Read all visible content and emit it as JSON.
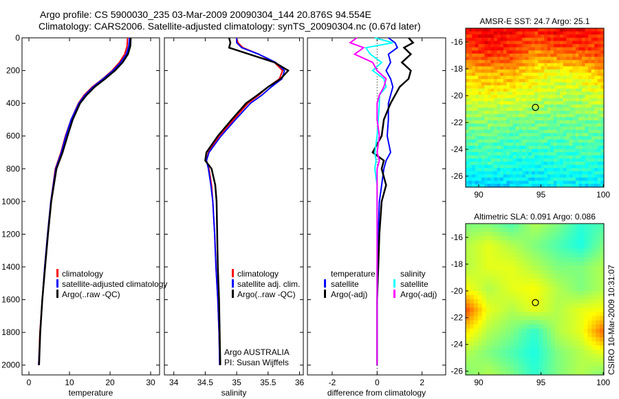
{
  "title_line1": "Argo profile: CS 5900030_235 03-Mar-2009 20090304_144 20.876S 94.554E",
  "title_line2": "Climatology: CARS2006. Satellite-adjusted climatology: synTS_20090304.nc (0.67d later)",
  "footer": "CSIRO 10-Mar-2009 10:31:07",
  "colors": {
    "climatology": "#ff0000",
    "satellite": "#0000ff",
    "argo": "#000000",
    "sal_sat": "#00ffff",
    "sal_argo": "#ff00ff"
  },
  "chart_data": [
    {
      "type": "line",
      "id": "temp",
      "xlabel": "temperature",
      "xlim": [
        -1.7,
        32.2
      ],
      "ylim": [
        0,
        2060
      ],
      "xticks": [
        0,
        10,
        20,
        30
      ],
      "yticks": [
        0,
        200,
        400,
        600,
        800,
        1000,
        1200,
        1400,
        1600,
        1800,
        2000
      ],
      "legend": [
        "climatology",
        "satellite-adjusted climatology",
        "Argo(..raw -QC)"
      ],
      "depth": [
        0,
        50,
        100,
        150,
        200,
        250,
        300,
        350,
        400,
        500,
        600,
        700,
        800,
        1000,
        1200,
        1400,
        1600,
        1800,
        2000
      ],
      "series": [
        {
          "name": "climatology",
          "color": "#ff0000",
          "values": [
            24.3,
            24.2,
            23.6,
            22.3,
            20.5,
            18.2,
            15.6,
            13.6,
            12.2,
            10.4,
            9.0,
            7.9,
            6.5,
            5.4,
            4.6,
            3.9,
            3.3,
            2.7,
            2.4
          ]
        },
        {
          "name": "satellite-adjusted climatology",
          "color": "#0000ff",
          "values": [
            24.8,
            24.6,
            24.0,
            22.6,
            20.7,
            18.3,
            15.8,
            13.8,
            12.3,
            10.4,
            9.1,
            8.0,
            6.6,
            5.4,
            4.6,
            3.9,
            3.3,
            2.8,
            2.4
          ]
        },
        {
          "name": "Argo(..raw -QC)",
          "color": "#000000",
          "values": [
            25.1,
            25.0,
            24.4,
            23.1,
            21.2,
            18.8,
            16.2,
            14.2,
            12.6,
            10.8,
            9.5,
            8.3,
            6.8,
            5.5,
            4.7,
            4.0,
            3.3,
            2.8,
            2.5
          ]
        }
      ]
    },
    {
      "type": "line",
      "id": "sal",
      "xlabel": "salinity",
      "xlim": [
        33.85,
        36.06
      ],
      "ylim": [
        0,
        2060
      ],
      "xticks": [
        34,
        34.5,
        35,
        35.5,
        36
      ],
      "legend": [
        "climatology",
        "satellite adj. clim.",
        "Argo(..raw -QC)"
      ],
      "annotation": [
        "Argo AUSTRALIA",
        "PI: Susan Wijffels"
      ],
      "depth": [
        0,
        30,
        60,
        100,
        150,
        200,
        250,
        300,
        350,
        400,
        500,
        600,
        700,
        750,
        800,
        900,
        1000,
        1200,
        1400,
        1600,
        1800,
        2000
      ],
      "series": [
        {
          "name": "climatology",
          "color": "#ff0000",
          "values": [
            35.0,
            35.02,
            35.1,
            35.35,
            35.6,
            35.73,
            35.68,
            35.5,
            35.35,
            35.18,
            34.95,
            34.72,
            34.55,
            34.52,
            34.56,
            34.6,
            34.62,
            34.65,
            34.67,
            34.7,
            34.72,
            34.73
          ]
        },
        {
          "name": "satellite adj. clim.",
          "color": "#0000ff",
          "values": [
            35.0,
            35.0,
            35.08,
            35.35,
            35.62,
            35.76,
            35.72,
            35.55,
            35.4,
            35.22,
            34.98,
            34.75,
            34.56,
            34.52,
            34.55,
            34.59,
            34.62,
            34.65,
            34.67,
            34.7,
            34.72,
            34.73
          ]
        },
        {
          "name": "Argo(..raw -QC)",
          "color": "#000000",
          "values": [
            34.88,
            34.9,
            34.88,
            35.2,
            35.6,
            35.82,
            35.7,
            35.5,
            35.33,
            35.15,
            34.92,
            34.7,
            34.52,
            34.5,
            34.6,
            34.66,
            34.68,
            34.69,
            34.7,
            34.72,
            34.73,
            34.74
          ]
        }
      ]
    },
    {
      "type": "line",
      "id": "diff",
      "xlabel": "difference from climatology",
      "xlim": [
        -3.1,
        3.05
      ],
      "ylim": [
        0,
        2060
      ],
      "xticks": [
        -2,
        0,
        2
      ],
      "legend_titles": [
        "temperature",
        "salinity"
      ],
      "legend": [
        "satellite",
        "Argo(-adj)",
        "satellite",
        "Argo(-adj)"
      ],
      "depth": [
        0,
        30,
        60,
        100,
        150,
        200,
        250,
        300,
        350,
        400,
        500,
        600,
        700,
        750,
        800,
        900,
        1000,
        1200,
        1400,
        1600,
        1800,
        2000
      ],
      "series": [
        {
          "name": "temperature satellite",
          "color": "#0000ff",
          "values": [
            0.5,
            0.8,
            0.9,
            0.5,
            0.6,
            0.4,
            0.6,
            0.7,
            0.6,
            0.5,
            0.5,
            0.45,
            0.6,
            0.4,
            0.3,
            0.2,
            0.1,
            0.05,
            0.0,
            0.0,
            0.0,
            0.0
          ]
        },
        {
          "name": "temperature Argo(-adj)",
          "color": "#000000",
          "values": [
            1.4,
            1.6,
            1.2,
            1.5,
            1.1,
            1.5,
            1.4,
            1.0,
            0.8,
            0.6,
            0.3,
            0.2,
            -0.2,
            0.3,
            0.2,
            0.4,
            0.2,
            0.1,
            0.05,
            0.0,
            0.0,
            0.0
          ]
        },
        {
          "name": "salinity satellite",
          "color": "#00ffff",
          "values": [
            -0.1,
            0.7,
            -0.5,
            -0.3,
            0.2,
            -0.2,
            0.3,
            0.4,
            0.1,
            0.1,
            0.05,
            0.0,
            -0.1,
            -0.05,
            -0.1,
            0.0,
            0.0,
            0.0,
            0.0,
            0.0,
            0.0,
            0.0
          ]
        },
        {
          "name": "salinity Argo(-adj)",
          "color": "#ff00ff",
          "values": [
            -0.9,
            -1.2,
            -0.6,
            -1.0,
            -0.2,
            0.0,
            0.4,
            0.3,
            0.1,
            0.0,
            0.0,
            0.1,
            0.0,
            0.1,
            0.0,
            0.0,
            0.0,
            0.0,
            0.0,
            0.0,
            0.0,
            0.0
          ]
        }
      ]
    },
    {
      "type": "heatmap",
      "id": "sst",
      "title": "AMSR-E SST: 24.7 Argo: 25.1",
      "xlim": [
        88.95,
        100.05
      ],
      "ylim": [
        -26.82,
        -14.97
      ],
      "xticks": [
        90,
        95,
        100
      ],
      "yticks": [
        -16,
        -18,
        -20,
        -22,
        -24,
        -26
      ],
      "marker": [
        94.554,
        -20.876
      ],
      "blocky": true,
      "grid": [
        [
          0.86,
          0.9,
          0.88,
          0.85,
          0.9,
          0.88,
          0.84
        ],
        [
          0.8,
          0.85,
          0.82,
          0.74,
          0.78,
          0.8,
          0.82
        ],
        [
          0.66,
          0.7,
          0.7,
          0.64,
          0.6,
          0.63,
          0.7
        ],
        [
          0.6,
          0.62,
          0.6,
          0.58,
          0.55,
          0.55,
          0.6
        ],
        [
          0.5,
          0.52,
          0.5,
          0.5,
          0.48,
          0.5,
          0.5
        ],
        [
          0.46,
          0.46,
          0.44,
          0.45,
          0.45,
          0.46,
          0.44
        ],
        [
          0.4,
          0.42,
          0.4,
          0.38,
          0.4,
          0.42,
          0.4
        ],
        [
          0.34,
          0.32,
          0.33,
          0.35,
          0.38,
          0.35,
          0.36
        ]
      ]
    },
    {
      "type": "heatmap",
      "id": "sla",
      "title": "Altimetric SLA: 0.091 Argo: 0.086",
      "xlim": [
        88.95,
        100.05
      ],
      "ylim": [
        -26.28,
        -14.97
      ],
      "xticks": [
        90,
        95,
        100
      ],
      "yticks": [
        -16,
        -18,
        -20,
        -22,
        -24,
        -26
      ],
      "marker": [
        94.554,
        -20.876
      ],
      "blocky": false,
      "grid": [
        [
          0.5,
          0.5,
          0.45,
          0.55,
          0.5,
          0.42,
          0.45
        ],
        [
          0.55,
          0.6,
          0.55,
          0.5,
          0.45,
          0.4,
          0.5
        ],
        [
          0.55,
          0.6,
          0.6,
          0.55,
          0.5,
          0.5,
          0.55
        ],
        [
          0.62,
          0.55,
          0.6,
          0.62,
          0.55,
          0.5,
          0.55
        ],
        [
          0.8,
          0.6,
          0.55,
          0.6,
          0.55,
          0.6,
          0.62
        ],
        [
          0.65,
          0.55,
          0.5,
          0.42,
          0.55,
          0.6,
          0.78
        ],
        [
          0.55,
          0.5,
          0.45,
          0.4,
          0.5,
          0.55,
          0.6
        ],
        [
          0.5,
          0.55,
          0.5,
          0.42,
          0.5,
          0.55,
          0.5
        ]
      ]
    }
  ]
}
